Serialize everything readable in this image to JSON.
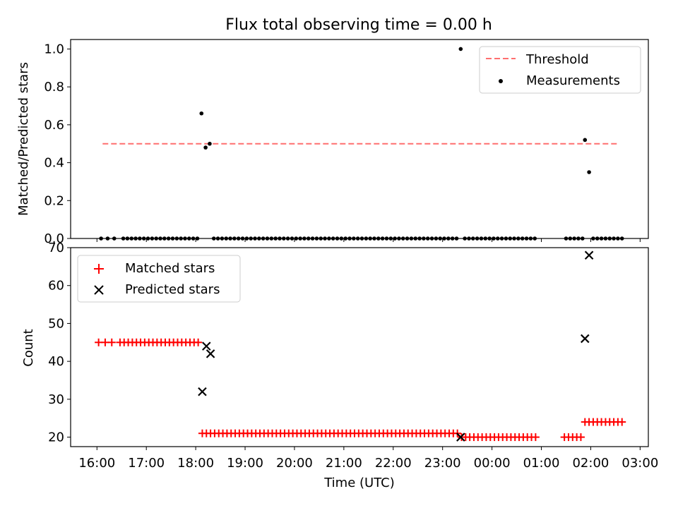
{
  "chart_data": [
    {
      "type": "scatter",
      "title": "Flux total observing time = 0.00 h",
      "ylabel": "Matched/Predicted stars",
      "xlabel": "",
      "ylim": [
        0,
        1.05
      ],
      "yticks": [
        "0.0",
        "0.2",
        "0.4",
        "0.6",
        "0.8",
        "1.0"
      ],
      "threshold": {
        "name": "Threshold",
        "value": 0.5,
        "x_range": [
          "16:00",
          "02:35"
        ],
        "color": "#ff6f6f"
      },
      "series": [
        {
          "name": "Measurements",
          "color": "#000000",
          "marker": "dot",
          "points": [
            [
              "16:05",
              0
            ],
            [
              "16:13",
              0
            ],
            [
              "16:21",
              0
            ],
            [
              "16:32",
              0
            ],
            [
              "16:37",
              0
            ],
            [
              "16:42",
              0
            ],
            [
              "16:47",
              0
            ],
            [
              "16:52",
              0
            ],
            [
              "16:57",
              0
            ],
            [
              "17:02",
              0
            ],
            [
              "17:07",
              0
            ],
            [
              "17:12",
              0
            ],
            [
              "17:17",
              0
            ],
            [
              "17:22",
              0
            ],
            [
              "17:27",
              0
            ],
            [
              "17:32",
              0
            ],
            [
              "17:37",
              0
            ],
            [
              "17:42",
              0
            ],
            [
              "17:47",
              0
            ],
            [
              "17:52",
              0
            ],
            [
              "17:57",
              0
            ],
            [
              "18:02",
              0
            ],
            [
              "18:07",
              0.66
            ],
            [
              "18:12",
              0.48
            ],
            [
              "18:17",
              0.5
            ],
            [
              "18:22",
              0
            ],
            [
              "18:27",
              0
            ],
            [
              "18:32",
              0
            ],
            [
              "18:37",
              0
            ],
            [
              "18:42",
              0
            ],
            [
              "18:47",
              0
            ],
            [
              "18:52",
              0
            ],
            [
              "18:57",
              0
            ],
            [
              "19:02",
              0
            ],
            [
              "19:07",
              0
            ],
            [
              "19:12",
              0
            ],
            [
              "19:17",
              0
            ],
            [
              "19:22",
              0
            ],
            [
              "19:27",
              0
            ],
            [
              "19:32",
              0
            ],
            [
              "19:37",
              0
            ],
            [
              "19:42",
              0
            ],
            [
              "19:47",
              0
            ],
            [
              "19:52",
              0
            ],
            [
              "19:57",
              0
            ],
            [
              "20:02",
              0
            ],
            [
              "20:07",
              0
            ],
            [
              "20:12",
              0
            ],
            [
              "20:17",
              0
            ],
            [
              "20:22",
              0
            ],
            [
              "20:27",
              0
            ],
            [
              "20:32",
              0
            ],
            [
              "20:37",
              0
            ],
            [
              "20:42",
              0
            ],
            [
              "20:47",
              0
            ],
            [
              "20:52",
              0
            ],
            [
              "20:57",
              0
            ],
            [
              "21:02",
              0
            ],
            [
              "21:07",
              0
            ],
            [
              "21:12",
              0
            ],
            [
              "21:17",
              0
            ],
            [
              "21:22",
              0
            ],
            [
              "21:27",
              0
            ],
            [
              "21:32",
              0
            ],
            [
              "21:37",
              0
            ],
            [
              "21:42",
              0
            ],
            [
              "21:47",
              0
            ],
            [
              "21:52",
              0
            ],
            [
              "21:57",
              0
            ],
            [
              "22:02",
              0
            ],
            [
              "22:07",
              0
            ],
            [
              "22:12",
              0
            ],
            [
              "22:17",
              0
            ],
            [
              "22:22",
              0
            ],
            [
              "22:27",
              0
            ],
            [
              "22:32",
              0
            ],
            [
              "22:37",
              0
            ],
            [
              "22:42",
              0
            ],
            [
              "22:47",
              0
            ],
            [
              "22:52",
              0
            ],
            [
              "22:57",
              0
            ],
            [
              "23:02",
              0
            ],
            [
              "23:07",
              0
            ],
            [
              "23:12",
              0
            ],
            [
              "23:17",
              0
            ],
            [
              "23:22",
              1.0
            ],
            [
              "23:27",
              0
            ],
            [
              "23:32",
              0
            ],
            [
              "23:37",
              0
            ],
            [
              "23:42",
              0
            ],
            [
              "23:47",
              0
            ],
            [
              "23:52",
              0
            ],
            [
              "23:57",
              0
            ],
            [
              "00:02",
              0
            ],
            [
              "00:07",
              0
            ],
            [
              "00:12",
              0
            ],
            [
              "00:17",
              0
            ],
            [
              "00:22",
              0
            ],
            [
              "00:27",
              0
            ],
            [
              "00:32",
              0
            ],
            [
              "00:37",
              0
            ],
            [
              "00:42",
              0
            ],
            [
              "00:47",
              0
            ],
            [
              "00:52",
              0
            ],
            [
              "01:30",
              0
            ],
            [
              "01:35",
              0
            ],
            [
              "01:40",
              0
            ],
            [
              "01:45",
              0
            ],
            [
              "01:50",
              0
            ],
            [
              "01:53",
              0.52
            ],
            [
              "01:58",
              0.35
            ],
            [
              "02:03",
              0
            ],
            [
              "02:08",
              0
            ],
            [
              "02:13",
              0
            ],
            [
              "02:18",
              0
            ],
            [
              "02:23",
              0
            ],
            [
              "02:28",
              0
            ],
            [
              "02:33",
              0
            ],
            [
              "02:38",
              0
            ]
          ]
        }
      ]
    },
    {
      "type": "scatter",
      "title": "",
      "ylabel": "Count",
      "xlabel": "Time (UTC)",
      "ylim": [
        17.5,
        70
      ],
      "yticks": [
        "20",
        "30",
        "40",
        "50",
        "60",
        "70"
      ],
      "xticks": [
        "16:00",
        "17:00",
        "18:00",
        "19:00",
        "20:00",
        "21:00",
        "22:00",
        "23:00",
        "00:00",
        "01:00",
        "02:00",
        "03:00"
      ],
      "xlim": [
        "15:28",
        "03:10"
      ],
      "series": [
        {
          "name": "Matched stars",
          "color": "#ff0000",
          "marker": "plus",
          "points": [
            [
              "16:02",
              45
            ],
            [
              "16:10",
              45
            ],
            [
              "16:18",
              45
            ],
            [
              "16:28",
              45
            ],
            [
              "16:33",
              45
            ],
            [
              "16:38",
              45
            ],
            [
              "16:43",
              45
            ],
            [
              "16:48",
              45
            ],
            [
              "16:53",
              45
            ],
            [
              "16:58",
              45
            ],
            [
              "17:03",
              45
            ],
            [
              "17:08",
              45
            ],
            [
              "17:13",
              45
            ],
            [
              "17:18",
              45
            ],
            [
              "17:23",
              45
            ],
            [
              "17:28",
              45
            ],
            [
              "17:33",
              45
            ],
            [
              "17:38",
              45
            ],
            [
              "17:43",
              45
            ],
            [
              "17:48",
              45
            ],
            [
              "17:53",
              45
            ],
            [
              "17:58",
              45
            ],
            [
              "18:03",
              45
            ],
            [
              "18:08",
              21
            ],
            [
              "18:13",
              21
            ],
            [
              "18:18",
              21
            ],
            [
              "18:23",
              21
            ],
            [
              "18:28",
              21
            ],
            [
              "18:33",
              21
            ],
            [
              "18:38",
              21
            ],
            [
              "18:43",
              21
            ],
            [
              "18:48",
              21
            ],
            [
              "18:53",
              21
            ],
            [
              "18:58",
              21
            ],
            [
              "19:03",
              21
            ],
            [
              "19:08",
              21
            ],
            [
              "19:13",
              21
            ],
            [
              "19:18",
              21
            ],
            [
              "19:23",
              21
            ],
            [
              "19:28",
              21
            ],
            [
              "19:33",
              21
            ],
            [
              "19:38",
              21
            ],
            [
              "19:43",
              21
            ],
            [
              "19:48",
              21
            ],
            [
              "19:53",
              21
            ],
            [
              "19:58",
              21
            ],
            [
              "20:03",
              21
            ],
            [
              "20:08",
              21
            ],
            [
              "20:13",
              21
            ],
            [
              "20:18",
              21
            ],
            [
              "20:23",
              21
            ],
            [
              "20:28",
              21
            ],
            [
              "20:33",
              21
            ],
            [
              "20:38",
              21
            ],
            [
              "20:43",
              21
            ],
            [
              "20:48",
              21
            ],
            [
              "20:53",
              21
            ],
            [
              "20:58",
              21
            ],
            [
              "21:03",
              21
            ],
            [
              "21:08",
              21
            ],
            [
              "21:13",
              21
            ],
            [
              "21:18",
              21
            ],
            [
              "21:23",
              21
            ],
            [
              "21:28",
              21
            ],
            [
              "21:33",
              21
            ],
            [
              "21:38",
              21
            ],
            [
              "21:43",
              21
            ],
            [
              "21:48",
              21
            ],
            [
              "21:53",
              21
            ],
            [
              "21:58",
              21
            ],
            [
              "22:03",
              21
            ],
            [
              "22:08",
              21
            ],
            [
              "22:13",
              21
            ],
            [
              "22:18",
              21
            ],
            [
              "22:23",
              21
            ],
            [
              "22:28",
              21
            ],
            [
              "22:33",
              21
            ],
            [
              "22:38",
              21
            ],
            [
              "22:43",
              21
            ],
            [
              "22:48",
              21
            ],
            [
              "22:53",
              21
            ],
            [
              "22:58",
              21
            ],
            [
              "23:03",
              21
            ],
            [
              "23:08",
              21
            ],
            [
              "23:13",
              21
            ],
            [
              "23:18",
              21
            ],
            [
              "23:23",
              20
            ],
            [
              "23:28",
              20
            ],
            [
              "23:33",
              20
            ],
            [
              "23:38",
              20
            ],
            [
              "23:43",
              20
            ],
            [
              "23:48",
              20
            ],
            [
              "23:53",
              20
            ],
            [
              "23:58",
              20
            ],
            [
              "00:03",
              20
            ],
            [
              "00:08",
              20
            ],
            [
              "00:13",
              20
            ],
            [
              "00:18",
              20
            ],
            [
              "00:23",
              20
            ],
            [
              "00:28",
              20
            ],
            [
              "00:33",
              20
            ],
            [
              "00:38",
              20
            ],
            [
              "00:43",
              20
            ],
            [
              "00:48",
              20
            ],
            [
              "00:53",
              20
            ],
            [
              "01:28",
              20
            ],
            [
              "01:33",
              20
            ],
            [
              "01:38",
              20
            ],
            [
              "01:43",
              20
            ],
            [
              "01:48",
              20
            ],
            [
              "01:53",
              24
            ],
            [
              "01:58",
              24
            ],
            [
              "02:03",
              24
            ],
            [
              "02:08",
              24
            ],
            [
              "02:13",
              24
            ],
            [
              "02:18",
              24
            ],
            [
              "02:23",
              24
            ],
            [
              "02:28",
              24
            ],
            [
              "02:33",
              24
            ],
            [
              "02:38",
              24
            ]
          ]
        },
        {
          "name": "Predicted stars",
          "color": "#000000",
          "marker": "x",
          "points": [
            [
              "18:08",
              32
            ],
            [
              "18:13",
              44
            ],
            [
              "18:18",
              42
            ],
            [
              "23:22",
              20
            ],
            [
              "01:53",
              46
            ],
            [
              "01:58",
              68
            ]
          ]
        }
      ]
    }
  ]
}
